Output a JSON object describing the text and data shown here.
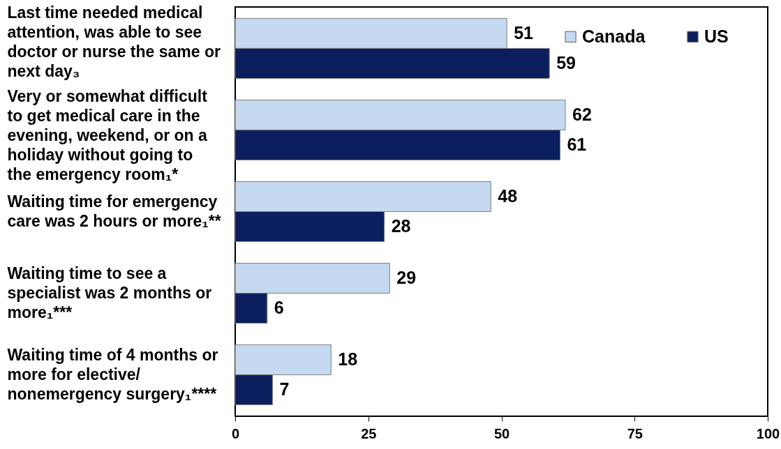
{
  "chart_data": {
    "type": "bar",
    "orientation": "horizontal",
    "categories": [
      "Last time needed medical attention, was able to see doctor or nurse the same or next day₃",
      "Very or somewhat difficult to get medical care in the evening, weekend, or on a holiday without going to the emergency room₁*",
      "Waiting time for emergency care was 2 hours or more₁**",
      "Waiting time to see a specialist was 2 months or more₁***",
      "Waiting time of 4 months or more for elective/ nonemergency surgery₁****"
    ],
    "series": [
      {
        "name": "Canada",
        "color": "#c5d9f1",
        "values": [
          51,
          62,
          48,
          29,
          18
        ]
      },
      {
        "name": "US",
        "color": "#0b1f5e",
        "values": [
          59,
          61,
          28,
          6,
          7
        ]
      }
    ],
    "xlim": [
      0,
      100
    ],
    "xticks": [
      0,
      25,
      50,
      75,
      100
    ],
    "data_labels": true,
    "legend": "top right"
  }
}
